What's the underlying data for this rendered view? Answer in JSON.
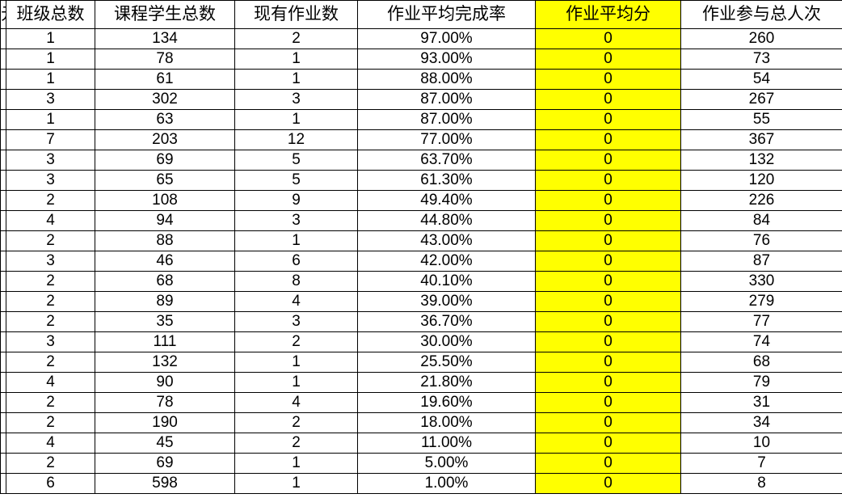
{
  "sheet": {
    "highlight_color": "#ffff00",
    "partial_left_header": "元",
    "headers": [
      "班级总数",
      "课程学生总数",
      "现有作业数",
      "作业平均完成率",
      "作业平均分",
      "作业参与总人次"
    ],
    "rows": [
      [
        "1",
        "134",
        "2",
        "97.00%",
        "0",
        "260"
      ],
      [
        "1",
        "78",
        "1",
        "93.00%",
        "0",
        "73"
      ],
      [
        "1",
        "61",
        "1",
        "88.00%",
        "0",
        "54"
      ],
      [
        "3",
        "302",
        "3",
        "87.00%",
        "0",
        "267"
      ],
      [
        "1",
        "63",
        "1",
        "87.00%",
        "0",
        "55"
      ],
      [
        "7",
        "203",
        "12",
        "77.00%",
        "0",
        "367"
      ],
      [
        "3",
        "69",
        "5",
        "63.70%",
        "0",
        "132"
      ],
      [
        "3",
        "65",
        "5",
        "61.30%",
        "0",
        "120"
      ],
      [
        "2",
        "108",
        "9",
        "49.40%",
        "0",
        "226"
      ],
      [
        "4",
        "94",
        "3",
        "44.80%",
        "0",
        "84"
      ],
      [
        "2",
        "88",
        "1",
        "43.00%",
        "0",
        "76"
      ],
      [
        "3",
        "46",
        "6",
        "42.00%",
        "0",
        "87"
      ],
      [
        "2",
        "68",
        "8",
        "40.10%",
        "0",
        "330"
      ],
      [
        "2",
        "89",
        "4",
        "39.00%",
        "0",
        "279"
      ],
      [
        "2",
        "35",
        "3",
        "36.70%",
        "0",
        "77"
      ],
      [
        "3",
        "111",
        "2",
        "30.00%",
        "0",
        "74"
      ],
      [
        "2",
        "132",
        "1",
        "25.50%",
        "0",
        "68"
      ],
      [
        "4",
        "90",
        "1",
        "21.80%",
        "0",
        "79"
      ],
      [
        "2",
        "78",
        "4",
        "19.60%",
        "0",
        "31"
      ],
      [
        "2",
        "190",
        "2",
        "18.00%",
        "0",
        "34"
      ],
      [
        "4",
        "45",
        "2",
        "11.00%",
        "0",
        "10"
      ],
      [
        "2",
        "69",
        "1",
        "5.00%",
        "0",
        "7"
      ],
      [
        "6",
        "598",
        "1",
        "1.00%",
        "0",
        "8"
      ]
    ]
  }
}
